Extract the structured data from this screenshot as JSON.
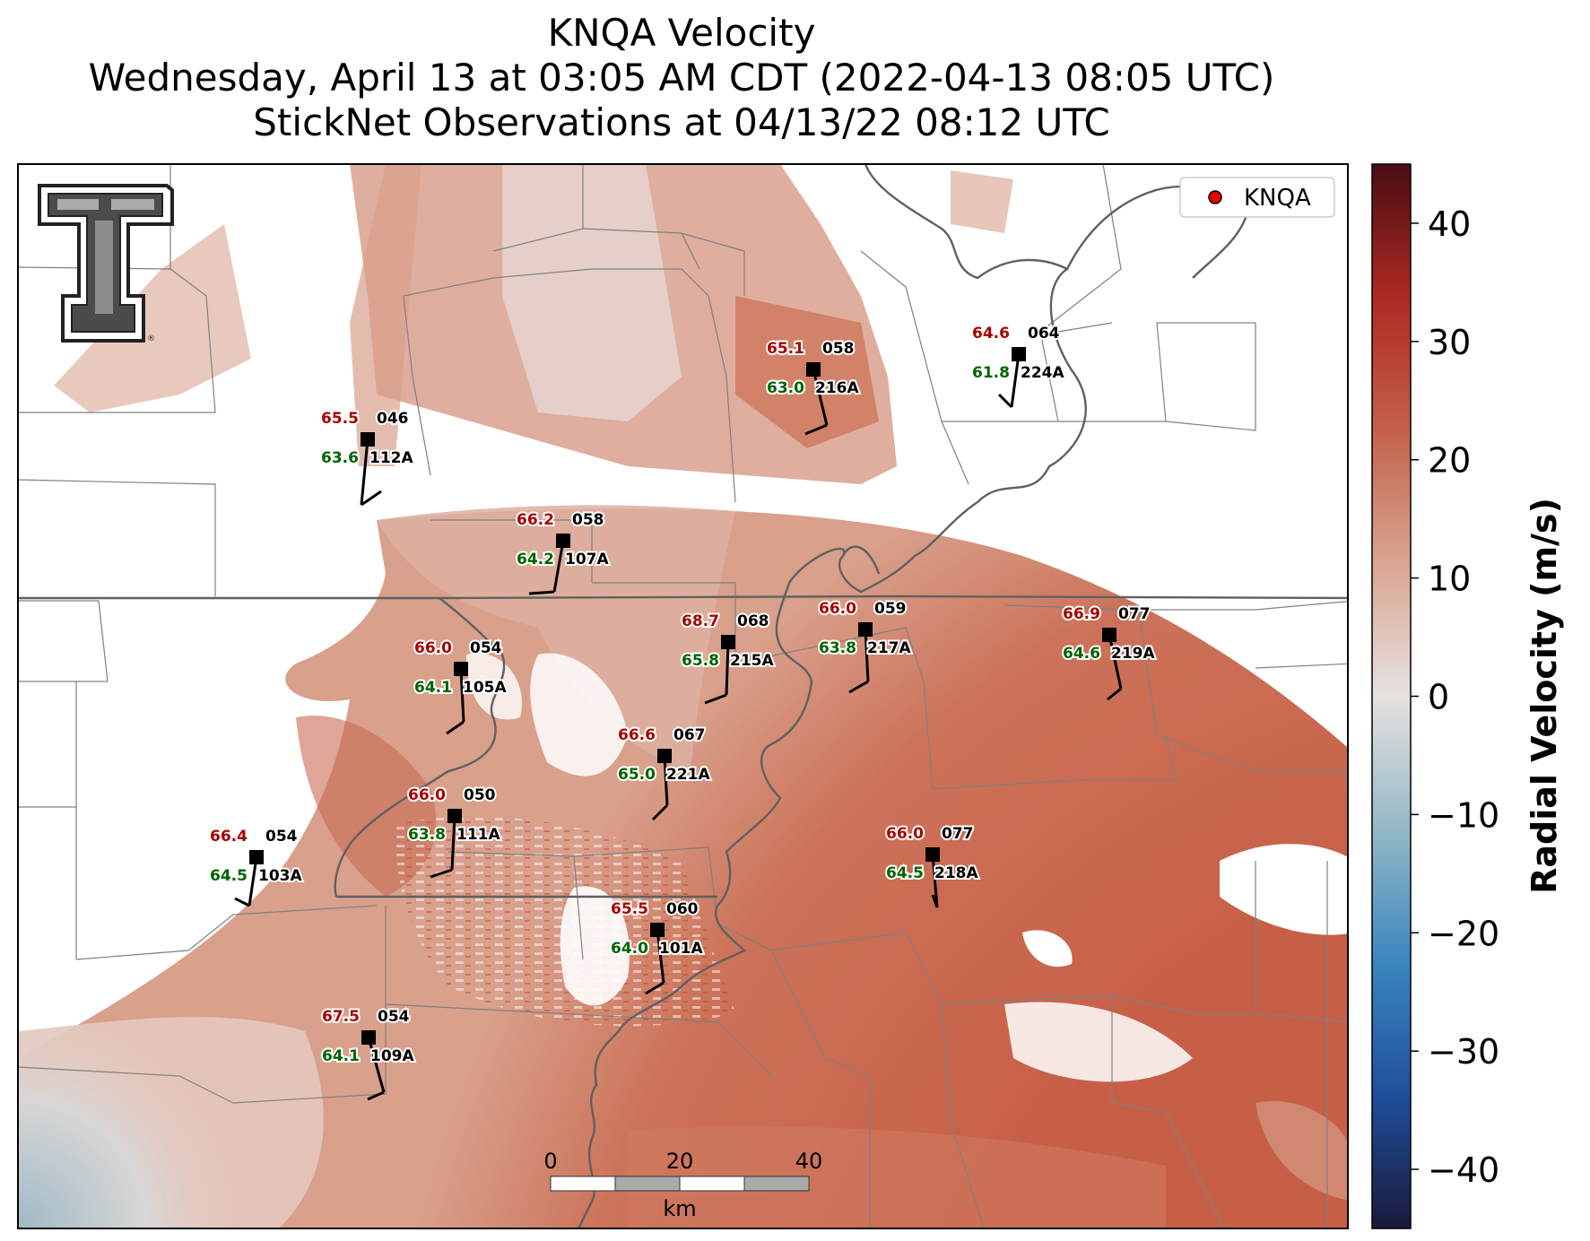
{
  "title": {
    "line1": "KNQA Velocity",
    "line2": "Wednesday, April 13 at 03:05 AM CDT (2022-04-13 08:05 UTC)",
    "line3": "StickNet Observations at 04/13/22 08:12 UTC"
  },
  "legend": {
    "label": "KNQA",
    "marker_color": "#e00000"
  },
  "colorbar": {
    "label": "Radial Velocity (m/s)",
    "ticks": [
      40,
      30,
      20,
      10,
      0,
      -10,
      -20,
      -30,
      -40
    ],
    "range": [
      -45,
      45
    ],
    "colors": [
      "#1a1a3a",
      "#1f4e9c",
      "#3a87bf",
      "#93b8c6",
      "#e6e2e0",
      "#d9a591",
      "#c4614a",
      "#ad2a22",
      "#4a0c14"
    ]
  },
  "scale_bar": {
    "ticks": [
      "0",
      "20",
      "40"
    ],
    "unit": "km"
  },
  "logo": {
    "name": "Texas Tech Double T",
    "mark": "®"
  },
  "stations": [
    {
      "id": "112A",
      "temp": "65.5",
      "dew": "63.6",
      "pres": "046"
    },
    {
      "id": "216A",
      "temp": "65.1",
      "dew": "63.0",
      "pres": "058"
    },
    {
      "id": "224A",
      "temp": "64.6",
      "dew": "61.8",
      "pres": "064"
    },
    {
      "id": "107A",
      "temp": "66.2",
      "dew": "64.2",
      "pres": "058"
    },
    {
      "id": "105A",
      "temp": "66.0",
      "dew": "64.1",
      "pres": "054"
    },
    {
      "id": "215A",
      "temp": "68.7",
      "dew": "65.8",
      "pres": "068"
    },
    {
      "id": "217A",
      "temp": "66.0",
      "dew": "63.8",
      "pres": "059"
    },
    {
      "id": "219A",
      "temp": "66.9",
      "dew": "64.6",
      "pres": "077"
    },
    {
      "id": "221A",
      "temp": "66.6",
      "dew": "65.0",
      "pres": "067"
    },
    {
      "id": "111A",
      "temp": "66.0",
      "dew": "63.8",
      "pres": "050"
    },
    {
      "id": "103A",
      "temp": "66.4",
      "dew": "64.5",
      "pres": "054"
    },
    {
      "id": "218A",
      "temp": "66.0",
      "dew": "64.5",
      "pres": "077"
    },
    {
      "id": "101A",
      "temp": "65.5",
      "dew": "64.0",
      "pres": "060"
    },
    {
      "id": "109A",
      "temp": "67.5",
      "dew": "64.1",
      "pres": "054"
    }
  ],
  "colors": {
    "temp_text": "#a80000",
    "dew_text": "#006400",
    "velocity_pale": "#e2c3b8",
    "velocity_mid": "#d88f76",
    "velocity_strong": "#c9644c",
    "velocity_inbound": "#9fbac6"
  }
}
